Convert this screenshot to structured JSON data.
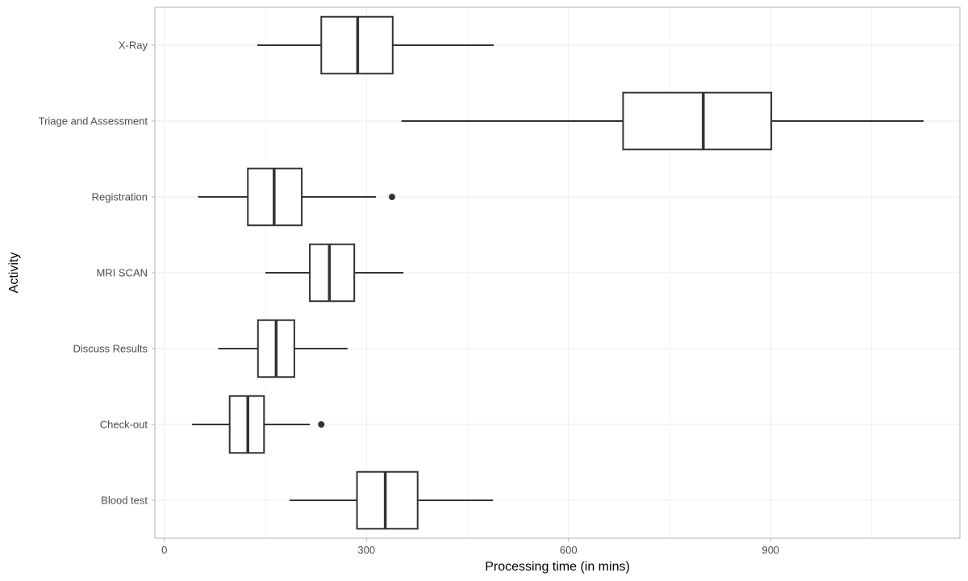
{
  "chart_data": {
    "type": "boxplot",
    "orientation": "horizontal",
    "title": "",
    "xlabel": "Processing time (in mins)",
    "ylabel": "Activity",
    "xlim": [
      -14,
      1181
    ],
    "xticks": [
      0,
      300,
      600,
      900
    ],
    "xtick_labels": [
      "0",
      "300",
      "600",
      "900"
    ],
    "grid": true,
    "legend": null,
    "categories": [
      "X-Ray",
      "Triage and Assessment",
      "Registration",
      "MRI SCAN",
      "Discuss Results",
      "Check-out",
      "Blood test"
    ],
    "series": [
      {
        "category": "X-Ray",
        "whisker_low": 138,
        "q1": 233,
        "median": 287,
        "q3": 339,
        "whisker_high": 489,
        "outliers": []
      },
      {
        "category": "Triage and Assessment",
        "whisker_low": 352,
        "q1": 681,
        "median": 800,
        "q3": 901,
        "whisker_high": 1127,
        "outliers": []
      },
      {
        "category": "Registration",
        "whisker_low": 50,
        "q1": 124,
        "median": 163,
        "q3": 204,
        "whisker_high": 314,
        "outliers": [
          338
        ]
      },
      {
        "category": "MRI SCAN",
        "whisker_low": 150,
        "q1": 216,
        "median": 245,
        "q3": 282,
        "whisker_high": 355,
        "outliers": []
      },
      {
        "category": "Discuss Results",
        "whisker_low": 80,
        "q1": 139,
        "median": 166,
        "q3": 193,
        "whisker_high": 272,
        "outliers": []
      },
      {
        "category": "Check-out",
        "whisker_low": 41,
        "q1": 97,
        "median": 124,
        "q3": 148,
        "whisker_high": 216,
        "outliers": [
          233
        ]
      },
      {
        "category": "Blood test",
        "whisker_low": 186,
        "q1": 286,
        "median": 328,
        "q3": 376,
        "whisker_high": 488,
        "outliers": []
      }
    ],
    "colors": {
      "box_line": "#333333",
      "box_fill": "#ffffff",
      "grid_major": "#ebebeb",
      "grid_minor": "#f5f5f5",
      "panel_border": "#b3b3b3",
      "tick_text": "#4d4d4d"
    }
  }
}
